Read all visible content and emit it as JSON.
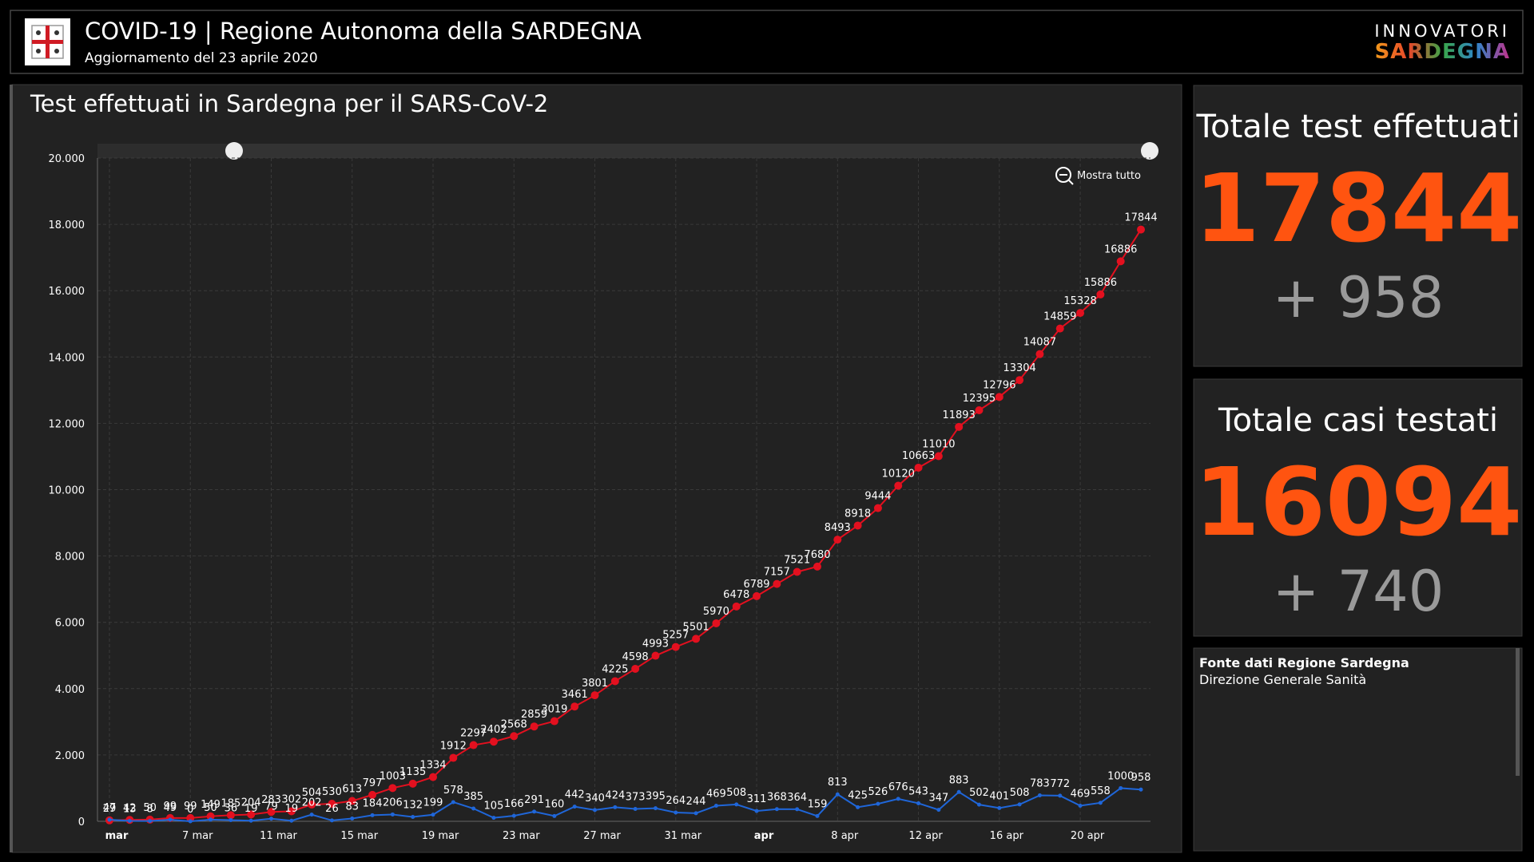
{
  "header": {
    "title": "COVID-19 | Regione Autonoma della SARDEGNA",
    "subtitle": "Aggiornamento del 23 aprile 2020",
    "brand_top": "INNOVATORI",
    "brand_bottom": "SARDEGNA"
  },
  "chart_data": {
    "type": "line",
    "title": "Test effettuati in Sardegna per il SARS-CoV-2",
    "zoom_button": "Mostra tutto",
    "categories": [
      "mar",
      null,
      null,
      null,
      "7 mar",
      null,
      null,
      null,
      "11 mar",
      null,
      null,
      null,
      "15 mar",
      null,
      null,
      null,
      "19 mar",
      null,
      null,
      null,
      "23 mar",
      null,
      null,
      null,
      "27 mar",
      null,
      null,
      null,
      "31 mar",
      null,
      null,
      null,
      "apr",
      null,
      null,
      null,
      "8 apr",
      null,
      null,
      null,
      "12 apr",
      null,
      null,
      null,
      "16 apr",
      null,
      null,
      null,
      "20 apr",
      null,
      null,
      null
    ],
    "series": [
      {
        "color": "#e3101f",
        "values": [
          29,
          42,
          50,
          99,
          99,
          149,
          185,
          204,
          283,
          302,
          504,
          530,
          613,
          797,
          1003,
          1135,
          1334,
          1912,
          2297,
          2402,
          2568,
          2859,
          3019,
          3461,
          3801,
          4225,
          4598,
          4993,
          5257,
          5501,
          5970,
          6478,
          6789,
          7157,
          7521,
          7680,
          8493,
          8918,
          9444,
          10120,
          10663,
          11010,
          11893,
          12395,
          12796,
          13304,
          14087,
          14859,
          15328,
          15886,
          16886,
          17844
        ]
      },
      {
        "color": "#1f66d9",
        "values": [
          47,
          13,
          8,
          49,
          0,
          50,
          36,
          19,
          79,
          19,
          202,
          26,
          83,
          184,
          206,
          132,
          199,
          578,
          385,
          105,
          166,
          291,
          160,
          442,
          340,
          424,
          373,
          395,
          264,
          244,
          469,
          508,
          311,
          368,
          364,
          159,
          813,
          425,
          526,
          676,
          543,
          347,
          883,
          502,
          401,
          508,
          783,
          772,
          469,
          558,
          1000,
          958
        ]
      }
    ],
    "ylim": [
      0,
      20000
    ],
    "yticks": [
      0,
      {
        "value": 2000,
        "label": "2.000"
      },
      {
        "value": 4000,
        "label": "4.000"
      },
      {
        "value": 6000,
        "label": "6.000"
      },
      {
        "value": 8000,
        "label": "8.000"
      },
      {
        "value": 10000,
        "label": "10.000"
      },
      {
        "value": 12000,
        "label": "12.000"
      },
      {
        "value": 14000,
        "label": "14.000"
      },
      {
        "value": 16000,
        "label": "16.000"
      },
      {
        "value": 18000,
        "label": "18.000"
      },
      {
        "value": 20000,
        "label": "20.000"
      }
    ],
    "grid": true
  },
  "kpis": [
    {
      "title": "Totale test effettuati",
      "value": 17844,
      "delta": "+ 958"
    },
    {
      "title": "Totale casi testati",
      "value": 16094,
      "delta": "+ 740"
    }
  ],
  "source": {
    "title": "Fonte dati Regione Sardegna",
    "subtitle": "Direzione Generale Sanità"
  }
}
